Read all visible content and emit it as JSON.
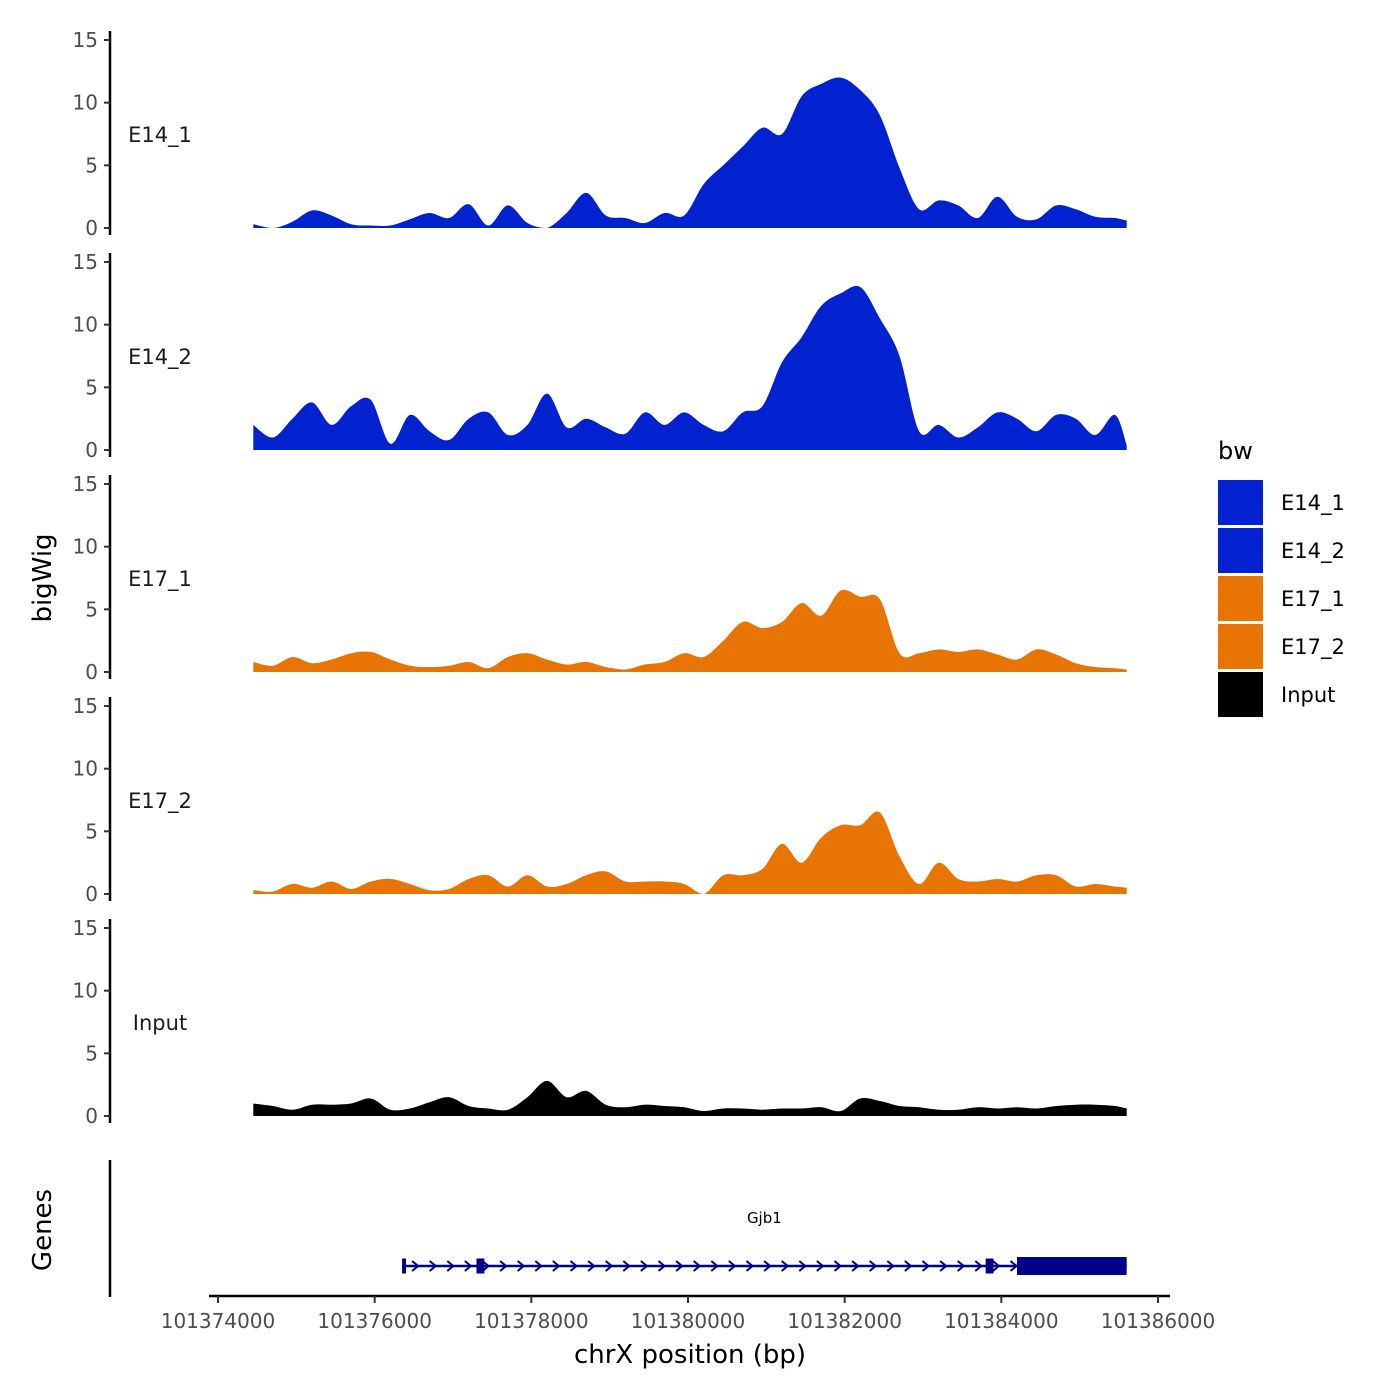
{
  "chart_data": {
    "type": "area",
    "ylabel": "bigWig",
    "xlabel": "chrX position (bp)",
    "xlim": [
      101374000,
      101386000
    ],
    "ylim": [
      0,
      15
    ],
    "x_ticks": [
      101374000,
      101376000,
      101378000,
      101380000,
      101382000,
      101384000,
      101386000
    ],
    "x_tick_labels": [
      "101374000",
      "101376000",
      "101378000",
      "101380000",
      "101382000",
      "101384000",
      "101386000"
    ],
    "y_ticks": [
      0,
      5,
      10,
      15
    ],
    "y_tick_labels": [
      "0",
      "5",
      "10",
      "15"
    ],
    "x": [
      101374450,
      101374700,
      101374950,
      101375200,
      101375450,
      101375700,
      101375950,
      101376200,
      101376450,
      101376700,
      101376950,
      101377200,
      101377450,
      101377700,
      101377950,
      101378200,
      101378450,
      101378700,
      101378950,
      101379200,
      101379450,
      101379700,
      101379950,
      101380200,
      101380450,
      101380700,
      101380950,
      101381200,
      101381450,
      101381700,
      101381950,
      101382200,
      101382450,
      101382700,
      101382950,
      101383200,
      101383450,
      101383700,
      101383950,
      101384200,
      101384450,
      101384700,
      101384950,
      101385200,
      101385450,
      101385600
    ],
    "series": [
      {
        "name": "E14_1",
        "color": "#0322CF",
        "values": [
          0.3,
          0.0,
          0.5,
          1.4,
          1.0,
          0.3,
          0.2,
          0.2,
          0.7,
          1.2,
          0.8,
          1.9,
          0.2,
          1.8,
          0.4,
          0.0,
          1.2,
          2.8,
          1.0,
          0.8,
          0.4,
          1.2,
          1.0,
          3.5,
          5.0,
          6.5,
          8.0,
          7.5,
          10.5,
          11.5,
          12.0,
          11.0,
          9.0,
          4.8,
          1.5,
          2.2,
          1.8,
          0.8,
          2.5,
          0.9,
          0.7,
          1.8,
          1.5,
          0.9,
          0.8,
          0.6
        ]
      },
      {
        "name": "E14_2",
        "color": "#0322CF",
        "values": [
          2.0,
          1.0,
          2.5,
          3.8,
          2.0,
          3.5,
          4.0,
          0.5,
          2.8,
          1.5,
          0.8,
          2.5,
          3.0,
          1.2,
          2.0,
          4.5,
          1.8,
          2.5,
          1.8,
          1.3,
          3.0,
          2.0,
          3.0,
          2.0,
          1.5,
          3.0,
          3.5,
          7.0,
          9.0,
          11.5,
          12.5,
          13.0,
          10.5,
          7.5,
          1.5,
          2.0,
          1.0,
          1.8,
          3.0,
          2.5,
          1.5,
          2.8,
          2.5,
          1.2,
          2.8,
          0.4
        ]
      },
      {
        "name": "E17_1",
        "color": "#E87404",
        "values": [
          0.8,
          0.5,
          1.2,
          0.7,
          1.0,
          1.5,
          1.6,
          1.0,
          0.5,
          0.4,
          0.5,
          0.8,
          0.3,
          1.2,
          1.5,
          1.0,
          0.6,
          0.8,
          0.4,
          0.2,
          0.6,
          0.8,
          1.5,
          1.2,
          2.5,
          4.0,
          3.5,
          4.0,
          5.5,
          4.5,
          6.5,
          6.0,
          5.8,
          1.5,
          1.5,
          1.8,
          1.6,
          1.8,
          1.4,
          1.0,
          1.8,
          1.4,
          0.7,
          0.4,
          0.3,
          0.2
        ]
      },
      {
        "name": "E17_2",
        "color": "#E87404",
        "values": [
          0.3,
          0.2,
          0.8,
          0.5,
          1.0,
          0.4,
          1.0,
          1.2,
          0.8,
          0.3,
          0.4,
          1.2,
          1.5,
          0.6,
          1.5,
          0.6,
          0.8,
          1.5,
          1.8,
          1.0,
          1.0,
          1.0,
          0.8,
          0.0,
          1.5,
          1.5,
          2.0,
          4.0,
          2.5,
          4.5,
          5.5,
          5.5,
          6.5,
          3.0,
          0.8,
          2.5,
          1.2,
          1.0,
          1.2,
          1.0,
          1.5,
          1.5,
          0.6,
          0.8,
          0.6,
          0.5
        ]
      },
      {
        "name": "Input",
        "color": "#000000",
        "values": [
          1.0,
          0.8,
          0.5,
          0.9,
          0.9,
          1.0,
          1.4,
          0.5,
          0.6,
          1.1,
          1.5,
          0.8,
          0.6,
          0.5,
          1.5,
          2.8,
          1.5,
          2.0,
          0.9,
          0.7,
          0.9,
          0.8,
          0.7,
          0.4,
          0.6,
          0.6,
          0.5,
          0.6,
          0.6,
          0.7,
          0.4,
          1.4,
          1.2,
          0.8,
          0.7,
          0.5,
          0.5,
          0.7,
          0.6,
          0.7,
          0.6,
          0.8,
          0.9,
          0.9,
          0.8,
          0.6
        ]
      }
    ],
    "legend": {
      "title": "bw",
      "position": "right",
      "entries": [
        {
          "label": "E14_1",
          "color": "#0322CF"
        },
        {
          "label": "E14_2",
          "color": "#0322CF"
        },
        {
          "label": "E17_1",
          "color": "#E87404"
        },
        {
          "label": "E17_2",
          "color": "#E87404"
        },
        {
          "label": "Input",
          "color": "#000000"
        }
      ]
    },
    "genes_track": {
      "ylabel": "Genes",
      "color": "#00008B",
      "genes": [
        {
          "name": "Gjb1",
          "start": 101376350,
          "end": 101385600,
          "strand": "+",
          "exons": [
            {
              "start": 101376350,
              "end": 101376400,
              "type": "utr"
            },
            {
              "start": 101377300,
              "end": 101377400,
              "type": "utr"
            },
            {
              "start": 101383800,
              "end": 101383900,
              "type": "utr"
            },
            {
              "start": 101384200,
              "end": 101385600,
              "type": "cds"
            }
          ]
        }
      ]
    }
  }
}
